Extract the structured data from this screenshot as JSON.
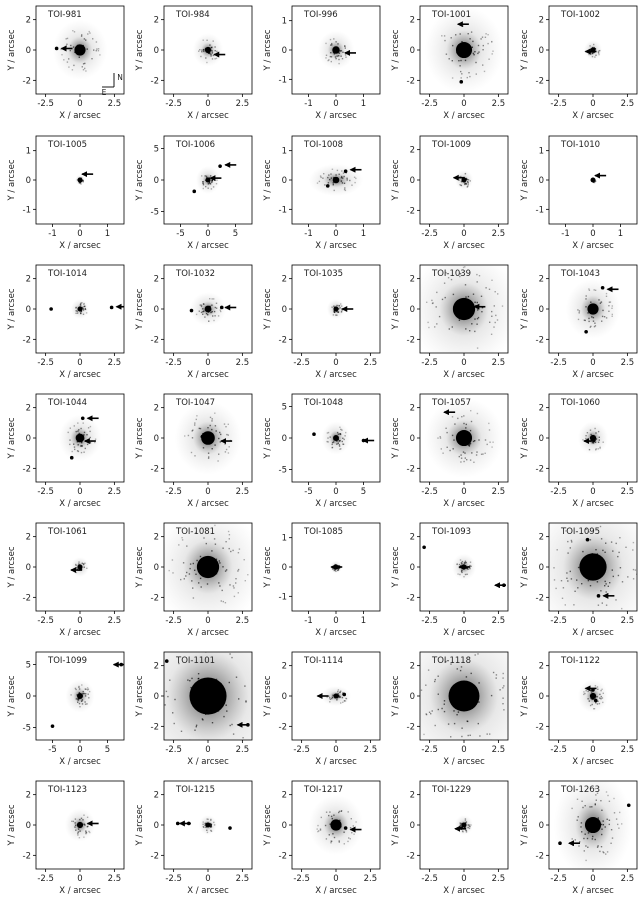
{
  "figure": {
    "xlabel": "X / arcsec",
    "ylabel": "Y / arcsec",
    "compass": {
      "north": "N",
      "east": "E"
    }
  },
  "chart_data": [
    {
      "type": "scatter",
      "title": "TOI-981",
      "xlim": [
        -3.2,
        3.2
      ],
      "ylim": [
        -2.9,
        2.9
      ],
      "xticks": [
        -2.5,
        0,
        2.5
      ],
      "yticks": [
        -2,
        0,
        2
      ],
      "halo": [
        0.9,
        0.9
      ],
      "companions": [
        [
          -1.7,
          0.1
        ]
      ],
      "arrows": [
        [
          -1.2,
          0.1
        ]
      ]
    },
    {
      "type": "scatter",
      "title": "TOI-984",
      "xlim": [
        -3.2,
        3.2
      ],
      "ylim": [
        -2.9,
        2.9
      ],
      "xticks": [
        -2.5,
        0,
        2.5
      ],
      "yticks": [
        -2,
        0,
        2
      ],
      "halo": [
        0.5,
        0.5
      ],
      "companions": [],
      "arrows": [
        [
          0.6,
          -0.3
        ]
      ]
    },
    {
      "type": "scatter",
      "title": "TOI-996",
      "xlim": [
        -1.6,
        1.6
      ],
      "ylim": [
        -1.5,
        1.5
      ],
      "xticks": [
        -1,
        0,
        1
      ],
      "yticks": [
        -1,
        0,
        1
      ],
      "halo": [
        0.3,
        0.3
      ],
      "companions": [],
      "arrows": [
        [
          0.4,
          -0.1
        ]
      ]
    },
    {
      "type": "scatter",
      "title": "TOI-1001",
      "xlim": [
        -3.2,
        3.2
      ],
      "ylim": [
        -2.9,
        2.9
      ],
      "xticks": [
        -2.5,
        0,
        2.5
      ],
      "yticks": [
        -2,
        0,
        2
      ],
      "halo": [
        1.3,
        1.3
      ],
      "companions": [
        [
          -0.2,
          -2.1
        ]
      ],
      "arrows": [
        [
          -0.3,
          1.7
        ]
      ]
    },
    {
      "type": "scatter",
      "title": "TOI-1002",
      "xlim": [
        -3.2,
        3.2
      ],
      "ylim": [
        -2.9,
        2.9
      ],
      "xticks": [
        -2.5,
        0,
        2.5
      ],
      "yticks": [
        -2,
        0,
        2
      ],
      "halo": [
        0.3,
        0.3
      ],
      "companions": [],
      "arrows": [
        [
          -0.4,
          -0.1
        ]
      ]
    },
    {
      "type": "scatter",
      "title": "TOI-1005",
      "xlim": [
        -1.6,
        1.6
      ],
      "ylim": [
        -1.5,
        1.5
      ],
      "xticks": [
        -1,
        0,
        1
      ],
      "yticks": [
        -1,
        0,
        1
      ],
      "halo": [
        0.08,
        0.08
      ],
      "companions": [],
      "arrows": [
        [
          0.15,
          0.2
        ]
      ]
    },
    {
      "type": "scatter",
      "title": "TOI-1006",
      "xlim": [
        -8,
        8
      ],
      "ylim": [
        -7,
        7
      ],
      "xticks": [
        -5,
        0,
        5
      ],
      "yticks": [
        -5,
        0,
        5
      ],
      "halo": [
        1,
        1
      ],
      "companions": [
        [
          -2.5,
          -1.8
        ],
        [
          2.2,
          2.2
        ]
      ],
      "arrows": [
        [
          0.8,
          0.3
        ],
        [
          3.5,
          2.4
        ]
      ]
    },
    {
      "type": "scatter",
      "title": "TOI-1008",
      "xlim": [
        -1.6,
        1.6
      ],
      "ylim": [
        -1.5,
        1.5
      ],
      "xticks": [
        -1,
        0,
        1
      ],
      "yticks": [
        -1,
        0,
        1
      ],
      "halo": [
        0.45,
        0.25
      ],
      "companions": [
        [
          -0.3,
          -0.2
        ],
        [
          0.35,
          0.3
        ]
      ],
      "arrows": [
        [
          0.6,
          0.35
        ]
      ]
    },
    {
      "type": "scatter",
      "title": "TOI-1009",
      "xlim": [
        -3.2,
        3.2
      ],
      "ylim": [
        -2.9,
        2.9
      ],
      "xticks": [
        -2.5,
        0,
        2.5
      ],
      "yticks": [
        -2,
        0,
        2
      ],
      "halo": [
        0.3,
        0.3
      ],
      "companions": [],
      "arrows": [
        [
          -0.6,
          0.15
        ]
      ]
    },
    {
      "type": "scatter",
      "title": "TOI-1010",
      "xlim": [
        -1.6,
        1.6
      ],
      "ylim": [
        -1.5,
        1.5
      ],
      "xticks": [
        -1,
        0,
        1
      ],
      "yticks": [
        -1,
        0,
        1
      ],
      "halo": [
        0.05,
        0.05
      ],
      "companions": [],
      "arrows": [
        [
          0.15,
          0.15
        ]
      ]
    },
    {
      "type": "scatter",
      "title": "TOI-1014",
      "xlim": [
        -3.2,
        3.2
      ],
      "ylim": [
        -2.9,
        2.9
      ],
      "xticks": [
        -2.5,
        0,
        2.5
      ],
      "yticks": [
        -2,
        0,
        2
      ],
      "halo": [
        0.3,
        0.3
      ],
      "companions": [
        [
          -2.1,
          0
        ],
        [
          2.3,
          0.1
        ]
      ],
      "arrows": [
        [
          2.8,
          0.15
        ]
      ]
    },
    {
      "type": "scatter",
      "title": "TOI-1032",
      "xlim": [
        -3.2,
        3.2
      ],
      "ylim": [
        -2.9,
        2.9
      ],
      "xticks": [
        -2.5,
        0,
        2.5
      ],
      "yticks": [
        -2,
        0,
        2
      ],
      "halo": [
        0.6,
        0.5
      ],
      "companions": [
        [
          -1.2,
          -0.1
        ],
        [
          1.0,
          0.1
        ]
      ],
      "arrows": [
        [
          1.4,
          0.1
        ]
      ]
    },
    {
      "type": "scatter",
      "title": "TOI-1035",
      "xlim": [
        -3.2,
        3.2
      ],
      "ylim": [
        -2.9,
        2.9
      ],
      "xticks": [
        -2.5,
        0,
        2.5
      ],
      "yticks": [
        -2,
        0,
        2
      ],
      "halo": [
        0.3,
        0.3
      ],
      "companions": [],
      "arrows": [
        [
          0.6,
          0
        ]
      ]
    },
    {
      "type": "scatter",
      "title": "TOI-1039",
      "xlim": [
        -3.2,
        3.2
      ],
      "ylim": [
        -2.9,
        2.9
      ],
      "xticks": [
        -2.5,
        0,
        2.5
      ],
      "yticks": [
        -2,
        0,
        2
      ],
      "halo": [
        1.8,
        1.8
      ],
      "companions": [
        [
          -0.5,
          -0.1
        ]
      ],
      "arrows": [
        [
          0.9,
          0.15
        ]
      ]
    },
    {
      "type": "scatter",
      "title": "TOI-1043",
      "xlim": [
        -3.2,
        3.2
      ],
      "ylim": [
        -2.9,
        2.9
      ],
      "xticks": [
        -2.5,
        0,
        2.5
      ],
      "yticks": [
        -2,
        0,
        2
      ],
      "halo": [
        0.9,
        0.9
      ],
      "companions": [
        [
          -0.5,
          -1.5
        ],
        [
          0.7,
          1.4
        ]
      ],
      "arrows": [
        [
          1.2,
          1.3
        ]
      ]
    },
    {
      "type": "scatter",
      "title": "TOI-1044",
      "xlim": [
        -3.2,
        3.2
      ],
      "ylim": [
        -2.9,
        2.9
      ],
      "xticks": [
        -2.5,
        0,
        2.5
      ],
      "yticks": [
        -2,
        0,
        2
      ],
      "halo": [
        0.7,
        0.7
      ],
      "companions": [
        [
          -0.6,
          -1.3
        ],
        [
          0.2,
          1.3
        ]
      ],
      "arrows": [
        [
          0.7,
          1.3
        ],
        [
          0.5,
          -0.2
        ]
      ]
    },
    {
      "type": "scatter",
      "title": "TOI-1047",
      "xlim": [
        -3.2,
        3.2
      ],
      "ylim": [
        -2.9,
        2.9
      ],
      "xticks": [
        -2.5,
        0,
        2.5
      ],
      "yticks": [
        -2,
        0,
        2
      ],
      "halo": [
        1.1,
        1.1
      ],
      "companions": [
        [
          -0.4,
          0.1
        ]
      ],
      "arrows": [
        [
          1.1,
          -0.2
        ]
      ]
    },
    {
      "type": "scatter",
      "title": "TOI-1048",
      "xlim": [
        -8,
        8
      ],
      "ylim": [
        -7,
        7
      ],
      "xticks": [
        -5,
        0,
        5
      ],
      "yticks": [
        -5,
        0,
        5
      ],
      "halo": [
        1.2,
        1.2
      ],
      "companions": [
        [
          -4,
          0.6
        ],
        [
          5,
          -0.4
        ]
      ],
      "arrows": [
        [
          5.3,
          -0.4
        ]
      ]
    },
    {
      "type": "scatter",
      "title": "TOI-1057",
      "xlim": [
        -3.2,
        3.2
      ],
      "ylim": [
        -2.9,
        2.9
      ],
      "xticks": [
        -2.5,
        0,
        2.5
      ],
      "yticks": [
        -2,
        0,
        2
      ],
      "halo": [
        1.3,
        1.2
      ],
      "companions": [],
      "arrows": [
        [
          -1.3,
          1.7
        ]
      ]
    },
    {
      "type": "scatter",
      "title": "TOI-1060",
      "xlim": [
        -3.2,
        3.2
      ],
      "ylim": [
        -2.9,
        2.9
      ],
      "xticks": [
        -2.5,
        0,
        2.5
      ],
      "yticks": [
        -2,
        0,
        2
      ],
      "halo": [
        0.5,
        0.5
      ],
      "companions": [],
      "arrows": [
        [
          -0.5,
          -0.2
        ]
      ]
    },
    {
      "type": "scatter",
      "title": "TOI-1061",
      "xlim": [
        -3.2,
        3.2
      ],
      "ylim": [
        -2.9,
        2.9
      ],
      "xticks": [
        -2.5,
        0,
        2.5
      ],
      "yticks": [
        -2,
        0,
        2
      ],
      "halo": [
        0.3,
        0.3
      ],
      "companions": [],
      "arrows": [
        [
          -0.5,
          -0.2
        ]
      ]
    },
    {
      "type": "scatter",
      "title": "TOI-1081",
      "xlim": [
        -3.2,
        3.2
      ],
      "ylim": [
        -2.9,
        2.9
      ],
      "xticks": [
        -2.5,
        0,
        2.5
      ],
      "yticks": [
        -2,
        0,
        2
      ],
      "halo": [
        1.8,
        1.8
      ],
      "companions": [
        [
          0.2,
          0.2
        ]
      ],
      "arrows": [
        [
          -0.4,
          -0.1
        ]
      ]
    },
    {
      "type": "scatter",
      "title": "TOI-1085",
      "xlim": [
        -1.6,
        1.6
      ],
      "ylim": [
        -1.5,
        1.5
      ],
      "xticks": [
        -1,
        0,
        1
      ],
      "yticks": [
        -1,
        0,
        1
      ],
      "halo": [
        0.1,
        0.1
      ],
      "companions": [
        [
          0.1,
          0
        ]
      ],
      "arrows": [
        [
          -0.1,
          0
        ]
      ]
    },
    {
      "type": "scatter",
      "title": "TOI-1093",
      "xlim": [
        -3.2,
        3.2
      ],
      "ylim": [
        -2.9,
        2.9
      ],
      "xticks": [
        -2.5,
        0,
        2.5
      ],
      "yticks": [
        -2,
        0,
        2
      ],
      "halo": [
        0.4,
        0.4
      ],
      "companions": [
        [
          -2.9,
          1.3
        ],
        [
          2.9,
          -1.2
        ]
      ],
      "arrows": [
        [
          -0.2,
          0
        ],
        [
          2.4,
          -1.2
        ]
      ]
    },
    {
      "type": "scatter",
      "title": "TOI-1095",
      "xlim": [
        -3.2,
        3.2
      ],
      "ylim": [
        -2.9,
        2.9
      ],
      "xticks": [
        -2.5,
        0,
        2.5
      ],
      "yticks": [
        -2,
        0,
        2
      ],
      "halo": [
        2.2,
        2.2
      ],
      "companions": [
        [
          -0.4,
          1.8
        ],
        [
          0.4,
          -1.9
        ]
      ],
      "arrows": [
        [
          0.9,
          -1.9
        ]
      ]
    },
    {
      "type": "scatter",
      "title": "TOI-1099",
      "xlim": [
        -8,
        8
      ],
      "ylim": [
        -7,
        7
      ],
      "xticks": [
        -5,
        0,
        5
      ],
      "yticks": [
        -5,
        0,
        5
      ],
      "halo": [
        1.2,
        1.2
      ],
      "companions": [
        [
          -5,
          -4.8
        ],
        [
          7.5,
          5
        ]
      ],
      "arrows": [
        [
          6.5,
          5
        ]
      ]
    },
    {
      "type": "scatter",
      "title": "TOI-1101",
      "xlim": [
        -3.2,
        3.2
      ],
      "ylim": [
        -2.9,
        2.9
      ],
      "xticks": [
        -2.5,
        0,
        2.5
      ],
      "yticks": [
        -2,
        0,
        2
      ],
      "halo": [
        3,
        3
      ],
      "companions": [
        [
          -3,
          2.3
        ],
        [
          2.9,
          -1.9
        ]
      ],
      "arrows": [
        [
          2.3,
          -1.9
        ]
      ]
    },
    {
      "type": "scatter",
      "title": "TOI-1114",
      "xlim": [
        -3.2,
        3.2
      ],
      "ylim": [
        -2.9,
        2.9
      ],
      "xticks": [
        -2.5,
        0,
        2.5
      ],
      "yticks": [
        -2,
        0,
        2
      ],
      "halo": [
        0.5,
        0.3
      ],
      "companions": [
        [
          0.6,
          0.1
        ]
      ],
      "arrows": [
        [
          -1.2,
          0
        ]
      ]
    },
    {
      "type": "scatter",
      "title": "TOI-1118",
      "xlim": [
        -3.2,
        3.2
      ],
      "ylim": [
        -2.9,
        2.9
      ],
      "xticks": [
        -2.5,
        0,
        2.5
      ],
      "yticks": [
        -2,
        0,
        2
      ],
      "halo": [
        2.5,
        2.5
      ],
      "companions": [],
      "arrows": [
        [
          -0.5,
          -0.1
        ]
      ]
    },
    {
      "type": "scatter",
      "title": "TOI-1122",
      "xlim": [
        -3.2,
        3.2
      ],
      "ylim": [
        -2.9,
        2.9
      ],
      "xticks": [
        -2.5,
        0,
        2.5
      ],
      "yticks": [
        -2,
        0,
        2
      ],
      "halo": [
        0.5,
        0.5
      ],
      "companions": [
        [
          0,
          0.4
        ],
        [
          0.2,
          -0.3
        ]
      ],
      "arrows": [
        [
          -0.4,
          0.5
        ]
      ]
    },
    {
      "type": "scatter",
      "title": "TOI-1123",
      "xlim": [
        -3.2,
        3.2
      ],
      "ylim": [
        -2.9,
        2.9
      ],
      "xticks": [
        -2.5,
        0,
        2.5
      ],
      "yticks": [
        -2,
        0,
        2
      ],
      "halo": [
        0.5,
        0.5
      ],
      "companions": [],
      "arrows": [
        [
          0.7,
          0.1
        ]
      ]
    },
    {
      "type": "scatter",
      "title": "TOI-1215",
      "xlim": [
        -3.2,
        3.2
      ],
      "ylim": [
        -2.9,
        2.9
      ],
      "xticks": [
        -2.5,
        0,
        2.5
      ],
      "yticks": [
        -2,
        0,
        2
      ],
      "halo": [
        0.3,
        0.3
      ],
      "companions": [
        [
          -2.2,
          0.1
        ],
        [
          -1.4,
          0.1
        ],
        [
          1.6,
          -0.2
        ]
      ],
      "arrows": [
        [
          -1.9,
          0.1
        ]
      ]
    },
    {
      "type": "scatter",
      "title": "TOI-1217",
      "xlim": [
        -3.2,
        3.2
      ],
      "ylim": [
        -2.9,
        2.9
      ],
      "xticks": [
        -2.5,
        0,
        2.5
      ],
      "yticks": [
        -2,
        0,
        2
      ],
      "halo": [
        0.9,
        0.9
      ],
      "companions": [
        [
          0.7,
          -0.2
        ]
      ],
      "arrows": [
        [
          1.2,
          -0.3
        ]
      ]
    },
    {
      "type": "scatter",
      "title": "TOI-1229",
      "xlim": [
        -3.2,
        3.2
      ],
      "ylim": [
        -2.9,
        2.9
      ],
      "xticks": [
        -2.5,
        0,
        2.5
      ],
      "yticks": [
        -2,
        0,
        2
      ],
      "halo": [
        0.3,
        0.3
      ],
      "companions": [
        [
          -0.2,
          -0.2
        ]
      ],
      "arrows": [
        [
          -0.5,
          -0.25
        ]
      ]
    },
    {
      "type": "scatter",
      "title": "TOI-1263",
      "xlim": [
        -3.2,
        3.2
      ],
      "ylim": [
        -2.9,
        2.9
      ],
      "xticks": [
        -2.5,
        0,
        2.5
      ],
      "yticks": [
        -2,
        0,
        2
      ],
      "halo": [
        1.3,
        1.6
      ],
      "companions": [
        [
          -2.4,
          -1.2
        ],
        [
          2.6,
          1.3
        ]
      ],
      "arrows": [
        [
          -1.6,
          -1.2
        ]
      ]
    }
  ]
}
